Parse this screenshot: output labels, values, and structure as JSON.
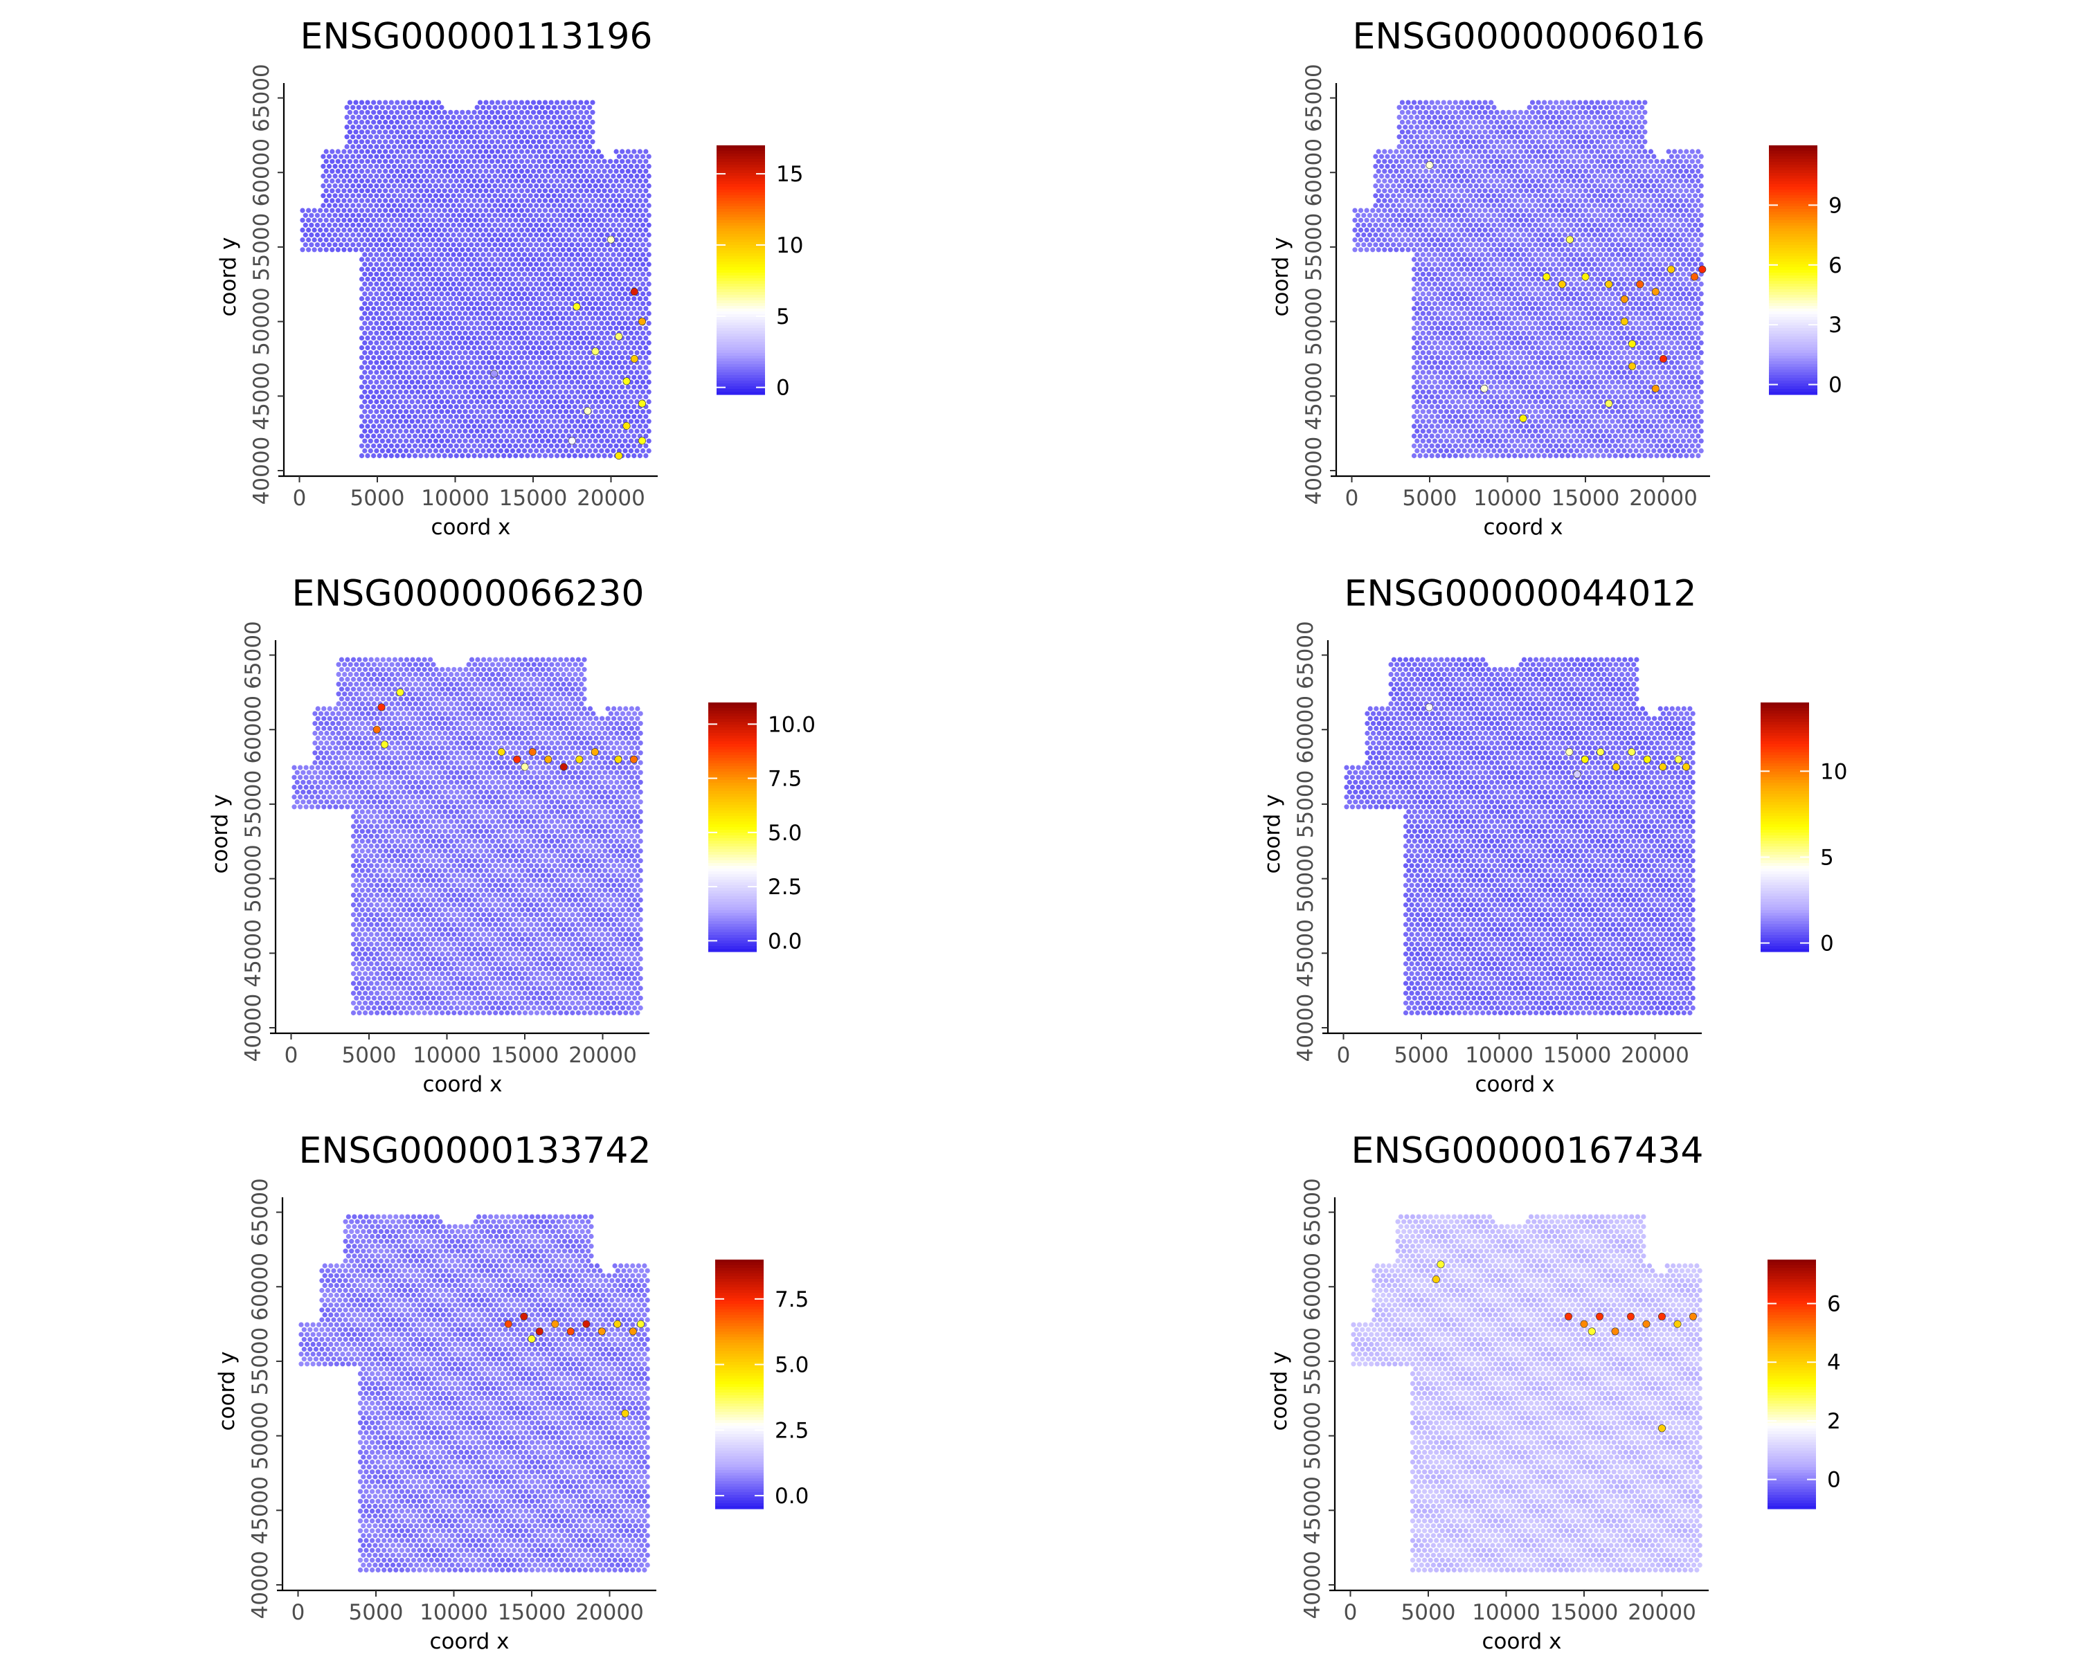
{
  "figure": {
    "panel_titles": [
      "ENSG00000113196",
      "ENSG00000006016",
      "ENSG00000066230",
      "ENSG00000044012",
      "ENSG00000133742",
      "ENSG00000167434"
    ]
  },
  "chart_data": [
    {
      "type": "scatter",
      "title": "ENSG00000113196",
      "xlabel": "coord x",
      "ylabel": "coord y",
      "xticks": [
        "0",
        "5000",
        "10000",
        "15000",
        "20000"
      ],
      "yticks": [
        "40000",
        "45000",
        "50000",
        "55000",
        "60000",
        "65000"
      ],
      "xlim": [
        -1000,
        23000
      ],
      "ylim": [
        40000,
        66000
      ],
      "legend_ticks": [
        "0",
        "5",
        "10",
        "15"
      ],
      "legend_tick_values": [
        0,
        5,
        10,
        15
      ],
      "legend_range": [
        -0.5,
        17
      ],
      "legend_position": "right",
      "color_scale": [
        "#2b1bf0",
        "#b3a8ff",
        "#ffffff",
        "#ffff00",
        "#ffa500",
        "#ff2a00",
        "#8b0000"
      ],
      "background_value": 0.4,
      "grid": false,
      "hotspots": [
        {
          "x": 21000,
          "y": 43000,
          "v": 9
        },
        {
          "x": 22000,
          "y": 44500,
          "v": 8
        },
        {
          "x": 21500,
          "y": 47500,
          "v": 10
        },
        {
          "x": 20500,
          "y": 49000,
          "v": 7
        },
        {
          "x": 22000,
          "y": 50000,
          "v": 11
        },
        {
          "x": 21500,
          "y": 52000,
          "v": 15
        },
        {
          "x": 19000,
          "y": 48000,
          "v": 7
        },
        {
          "x": 18500,
          "y": 44000,
          "v": 6
        },
        {
          "x": 17500,
          "y": 42000,
          "v": 5
        },
        {
          "x": 20500,
          "y": 41000,
          "v": 9
        },
        {
          "x": 22000,
          "y": 42000,
          "v": 8
        },
        {
          "x": 21000,
          "y": 46000,
          "v": 8
        },
        {
          "x": 17800,
          "y": 51000,
          "v": 8
        },
        {
          "x": 20000,
          "y": 55500,
          "v": 6
        },
        {
          "x": 12500,
          "y": 46500,
          "v": 2
        }
      ]
    },
    {
      "type": "scatter",
      "title": "ENSG00000006016",
      "xlabel": "coord x",
      "ylabel": "coord y",
      "xticks": [
        "0",
        "5000",
        "10000",
        "15000",
        "20000"
      ],
      "yticks": [
        "40000",
        "45000",
        "50000",
        "55000",
        "60000",
        "65000"
      ],
      "xlim": [
        -1000,
        23000
      ],
      "ylim": [
        40000,
        66000
      ],
      "legend_ticks": [
        "0",
        "3",
        "6",
        "9"
      ],
      "legend_tick_values": [
        0,
        3,
        6,
        9
      ],
      "legend_range": [
        -0.5,
        12
      ],
      "legend_position": "right",
      "color_scale": [
        "#2b1bf0",
        "#b3a8ff",
        "#ffffff",
        "#ffff00",
        "#ffa500",
        "#ff2a00",
        "#8b0000"
      ],
      "background_value": 0.4,
      "grid": false,
      "hotspots": [
        {
          "x": 22500,
          "y": 53500,
          "v": 10
        },
        {
          "x": 22000,
          "y": 53000,
          "v": 9
        },
        {
          "x": 20500,
          "y": 53500,
          "v": 7
        },
        {
          "x": 19500,
          "y": 52000,
          "v": 8
        },
        {
          "x": 18500,
          "y": 52500,
          "v": 9
        },
        {
          "x": 17500,
          "y": 51500,
          "v": 8
        },
        {
          "x": 16500,
          "y": 52500,
          "v": 7
        },
        {
          "x": 15000,
          "y": 53000,
          "v": 6
        },
        {
          "x": 13500,
          "y": 52500,
          "v": 7
        },
        {
          "x": 12500,
          "y": 53000,
          "v": 6
        },
        {
          "x": 17500,
          "y": 50000,
          "v": 7
        },
        {
          "x": 18000,
          "y": 48500,
          "v": 6
        },
        {
          "x": 18000,
          "y": 47000,
          "v": 7
        },
        {
          "x": 20000,
          "y": 47500,
          "v": 10
        },
        {
          "x": 19500,
          "y": 45500,
          "v": 8
        },
        {
          "x": 16500,
          "y": 44500,
          "v": 5
        },
        {
          "x": 14000,
          "y": 55500,
          "v": 5
        },
        {
          "x": 5000,
          "y": 60500,
          "v": 4
        },
        {
          "x": 8500,
          "y": 45500,
          "v": 4
        },
        {
          "x": 11000,
          "y": 43500,
          "v": 6
        }
      ]
    },
    {
      "type": "scatter",
      "title": "ENSG00000066230",
      "xlabel": "coord x",
      "ylabel": "coord y",
      "xticks": [
        "0",
        "5000",
        "10000",
        "15000",
        "20000"
      ],
      "yticks": [
        "40000",
        "45000",
        "50000",
        "55000",
        "60000",
        "65000"
      ],
      "xlim": [
        -1000,
        23000
      ],
      "ylim": [
        40000,
        66000
      ],
      "legend_ticks": [
        "0.0",
        "2.5",
        "5.0",
        "7.5",
        "10.0"
      ],
      "legend_tick_values": [
        0,
        2.5,
        5,
        7.5,
        10
      ],
      "legend_range": [
        -0.5,
        11
      ],
      "legend_position": "right",
      "color_scale": [
        "#2b1bf0",
        "#b3a8ff",
        "#ffffff",
        "#ffff00",
        "#ffa500",
        "#ff2a00",
        "#8b0000"
      ],
      "background_value": 0.4,
      "grid": false,
      "hotspots": [
        {
          "x": 13500,
          "y": 58500,
          "v": 6
        },
        {
          "x": 14500,
          "y": 58000,
          "v": 9
        },
        {
          "x": 15500,
          "y": 58500,
          "v": 8
        },
        {
          "x": 16500,
          "y": 58000,
          "v": 7
        },
        {
          "x": 17500,
          "y": 57500,
          "v": 10
        },
        {
          "x": 18500,
          "y": 58000,
          "v": 6
        },
        {
          "x": 19500,
          "y": 58500,
          "v": 7
        },
        {
          "x": 21000,
          "y": 58000,
          "v": 6
        },
        {
          "x": 22000,
          "y": 58000,
          "v": 8
        },
        {
          "x": 15000,
          "y": 57500,
          "v": 4
        },
        {
          "x": 5500,
          "y": 60000,
          "v": 8
        },
        {
          "x": 5800,
          "y": 61500,
          "v": 9
        },
        {
          "x": 6000,
          "y": 59000,
          "v": 5
        },
        {
          "x": 7000,
          "y": 62500,
          "v": 5
        }
      ]
    },
    {
      "type": "scatter",
      "title": "ENSG00000044012",
      "xlabel": "coord x",
      "ylabel": "coord y",
      "xticks": [
        "0",
        "5000",
        "10000",
        "15000",
        "20000"
      ],
      "yticks": [
        "40000",
        "45000",
        "50000",
        "55000",
        "60000",
        "65000"
      ],
      "xlim": [
        -1000,
        23000
      ],
      "ylim": [
        40000,
        66000
      ],
      "legend_ticks": [
        "0",
        "5",
        "10"
      ],
      "legend_tick_values": [
        0,
        5,
        10
      ],
      "legend_range": [
        -0.5,
        14
      ],
      "legend_position": "right",
      "color_scale": [
        "#2b1bf0",
        "#b3a8ff",
        "#ffffff",
        "#ffff00",
        "#ffa500",
        "#ff2a00",
        "#8b0000"
      ],
      "background_value": 0.4,
      "grid": false,
      "hotspots": [
        {
          "x": 14500,
          "y": 58500,
          "v": 5
        },
        {
          "x": 15500,
          "y": 58000,
          "v": 7
        },
        {
          "x": 16500,
          "y": 58500,
          "v": 6
        },
        {
          "x": 17500,
          "y": 57500,
          "v": 8
        },
        {
          "x": 18500,
          "y": 58500,
          "v": 6
        },
        {
          "x": 19500,
          "y": 58000,
          "v": 7
        },
        {
          "x": 20500,
          "y": 57500,
          "v": 8
        },
        {
          "x": 21500,
          "y": 58000,
          "v": 6
        },
        {
          "x": 22000,
          "y": 57500,
          "v": 8
        },
        {
          "x": 15000,
          "y": 57000,
          "v": 3
        },
        {
          "x": 5500,
          "y": 61500,
          "v": 4
        }
      ]
    },
    {
      "type": "scatter",
      "title": "ENSG00000133742",
      "xlabel": "coord x",
      "ylabel": "coord y",
      "xticks": [
        "0",
        "5000",
        "10000",
        "15000",
        "20000"
      ],
      "yticks": [
        "40000",
        "45000",
        "50000",
        "55000",
        "60000",
        "65000"
      ],
      "xlim": [
        -1000,
        23000
      ],
      "ylim": [
        40000,
        66000
      ],
      "legend_ticks": [
        "0.0",
        "2.5",
        "5.0",
        "7.5"
      ],
      "legend_tick_values": [
        0,
        2.5,
        5,
        7.5
      ],
      "legend_range": [
        -0.5,
        9
      ],
      "legend_position": "right",
      "color_scale": [
        "#2b1bf0",
        "#b3a8ff",
        "#ffffff",
        "#ffff00",
        "#ffa500",
        "#ff2a00",
        "#8b0000"
      ],
      "background_value": 0.3,
      "grid": false,
      "hotspots": [
        {
          "x": 13500,
          "y": 57500,
          "v": 7
        },
        {
          "x": 14500,
          "y": 58000,
          "v": 8
        },
        {
          "x": 15500,
          "y": 57000,
          "v": 8
        },
        {
          "x": 16500,
          "y": 57500,
          "v": 6
        },
        {
          "x": 17500,
          "y": 57000,
          "v": 7
        },
        {
          "x": 18500,
          "y": 57500,
          "v": 8
        },
        {
          "x": 19500,
          "y": 57000,
          "v": 6
        },
        {
          "x": 20500,
          "y": 57500,
          "v": 5
        },
        {
          "x": 21500,
          "y": 57000,
          "v": 6
        },
        {
          "x": 22000,
          "y": 57500,
          "v": 4
        },
        {
          "x": 15000,
          "y": 56500,
          "v": 4
        },
        {
          "x": 21000,
          "y": 51500,
          "v": 5
        }
      ]
    },
    {
      "type": "scatter",
      "title": "ENSG00000167434",
      "xlabel": "coord x",
      "ylabel": "coord y",
      "xticks": [
        "0",
        "5000",
        "10000",
        "15000",
        "20000"
      ],
      "yticks": [
        "40000",
        "45000",
        "50000",
        "55000",
        "60000",
        "65000"
      ],
      "xlim": [
        -1000,
        23000
      ],
      "ylim": [
        40000,
        66000
      ],
      "legend_ticks": [
        "0",
        "2",
        "4",
        "6"
      ],
      "legend_tick_values": [
        0,
        2,
        4,
        6
      ],
      "legend_range": [
        -1,
        7.5
      ],
      "legend_position": "right",
      "color_scale": [
        "#2b1bf0",
        "#b3a8ff",
        "#ffffff",
        "#ffff00",
        "#ffa500",
        "#ff2a00",
        "#8b0000"
      ],
      "background_value": 0.6,
      "grid": false,
      "hotspots": [
        {
          "x": 14000,
          "y": 58000,
          "v": 6
        },
        {
          "x": 15000,
          "y": 57500,
          "v": 5
        },
        {
          "x": 16000,
          "y": 58000,
          "v": 6
        },
        {
          "x": 17000,
          "y": 57000,
          "v": 5
        },
        {
          "x": 18000,
          "y": 58000,
          "v": 6
        },
        {
          "x": 19000,
          "y": 57500,
          "v": 5
        },
        {
          "x": 20000,
          "y": 58000,
          "v": 6
        },
        {
          "x": 21000,
          "y": 57500,
          "v": 4
        },
        {
          "x": 22000,
          "y": 58000,
          "v": 5
        },
        {
          "x": 15500,
          "y": 57000,
          "v": 3
        },
        {
          "x": 5500,
          "y": 60500,
          "v": 4
        },
        {
          "x": 5800,
          "y": 61500,
          "v": 3
        },
        {
          "x": 20000,
          "y": 50500,
          "v": 4
        }
      ]
    }
  ]
}
